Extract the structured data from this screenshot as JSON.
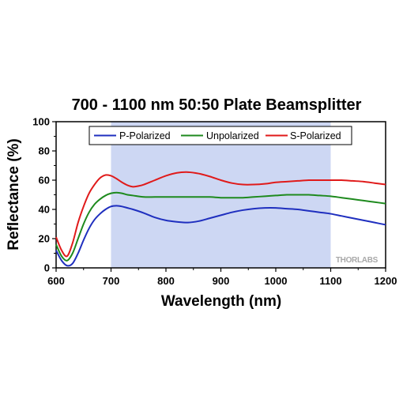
{
  "chart_data": {
    "type": "line",
    "title": "700 - 1100 nm 50:50 Plate Beamsplitter",
    "xlabel": "Wavelength (nm)",
    "ylabel": "Reflectance (%)",
    "xlim": [
      600,
      1200
    ],
    "ylim": [
      0,
      100
    ],
    "xticks": [
      "600",
      "700",
      "800",
      "900",
      "1000",
      "1100",
      "1200"
    ],
    "yticks": [
      "0",
      "20",
      "40",
      "60",
      "80",
      "100"
    ],
    "highlight_band": {
      "from": 700,
      "to": 1100,
      "color": "#cdd7f3"
    },
    "legend_position": "top-center",
    "watermark": "THORLABS",
    "series": [
      {
        "name": "P-Polarized",
        "color": "#1f2fbf",
        "x": [
          600,
          610,
          620,
          630,
          640,
          650,
          660,
          670,
          680,
          690,
          700,
          710,
          720,
          730,
          740,
          760,
          780,
          800,
          820,
          840,
          860,
          880,
          900,
          920,
          940,
          960,
          980,
          1000,
          1020,
          1040,
          1060,
          1080,
          1100,
          1120,
          1140,
          1160,
          1180,
          1200
        ],
        "y": [
          12,
          5,
          1.5,
          3,
          10,
          19,
          27,
          33,
          37,
          40,
          42,
          42.5,
          42,
          41,
          40,
          37.5,
          34.5,
          32.5,
          31.5,
          31,
          32,
          34,
          36,
          38,
          39.5,
          40.5,
          41,
          41,
          40.5,
          40,
          39,
          38,
          37,
          35.5,
          34,
          32.5,
          31,
          29.5
        ]
      },
      {
        "name": "Unpolarized",
        "color": "#1e8a1e",
        "x": [
          600,
          610,
          620,
          630,
          640,
          650,
          660,
          670,
          680,
          690,
          700,
          710,
          720,
          730,
          740,
          760,
          780,
          800,
          820,
          840,
          860,
          880,
          900,
          920,
          940,
          960,
          980,
          1000,
          1020,
          1040,
          1060,
          1080,
          1100,
          1120,
          1140,
          1160,
          1180,
          1200
        ],
        "y": [
          16,
          8,
          5,
          10,
          20,
          30,
          38,
          43.5,
          47,
          49.5,
          51,
          51.5,
          51,
          50,
          49.5,
          48.5,
          48.5,
          48.5,
          48.5,
          48.5,
          48.5,
          48.5,
          48,
          48,
          48,
          48.5,
          49,
          49.5,
          50,
          50,
          50,
          49.5,
          49,
          48,
          47,
          46,
          45,
          44
        ]
      },
      {
        "name": "S-Polarized",
        "color": "#e01a1a",
        "x": [
          600,
          610,
          620,
          630,
          640,
          650,
          660,
          670,
          680,
          690,
          700,
          710,
          720,
          730,
          740,
          750,
          760,
          780,
          800,
          820,
          840,
          860,
          880,
          900,
          920,
          940,
          960,
          980,
          1000,
          1020,
          1040,
          1060,
          1080,
          1100,
          1120,
          1140,
          1160,
          1180,
          1200
        ],
        "y": [
          21,
          12,
          8,
          17,
          31,
          42,
          51,
          57,
          61.5,
          63.5,
          63,
          61,
          58.5,
          56.5,
          55.5,
          56,
          57,
          60,
          63,
          65,
          65.5,
          64.5,
          62.5,
          60,
          58,
          57,
          57,
          57.5,
          58.5,
          59,
          59.5,
          60,
          60,
          60,
          60,
          59.5,
          59,
          58,
          57
        ]
      }
    ]
  }
}
